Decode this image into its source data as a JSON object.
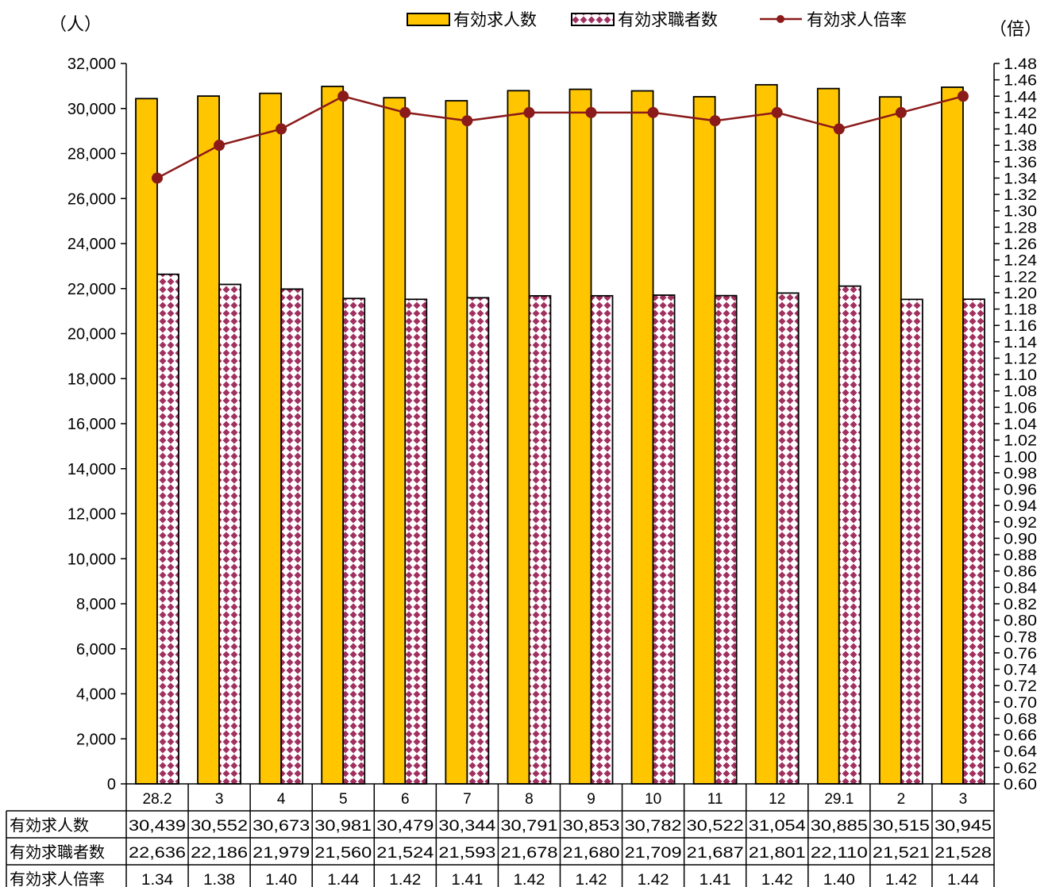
{
  "chart_data": {
    "type": "bar",
    "title": "",
    "y_left_unit": "（人）",
    "y_right_unit": "（倍）",
    "categories": [
      "28.2",
      "3",
      "4",
      "5",
      "6",
      "7",
      "8",
      "9",
      "10",
      "11",
      "12",
      "29.1",
      "2",
      "3"
    ],
    "series": [
      {
        "name": "有効求人数",
        "kind": "bar",
        "axis": "left",
        "color": "#FFC600",
        "values": [
          30439,
          30552,
          30673,
          30981,
          30479,
          30344,
          30791,
          30853,
          30782,
          30522,
          31054,
          30885,
          30515,
          30945
        ],
        "labels": [
          "30,439",
          "30,552",
          "30,673",
          "30,981",
          "30,479",
          "30,344",
          "30,791",
          "30,853",
          "30,782",
          "30,522",
          "31,054",
          "30,885",
          "30,515",
          "30,945"
        ]
      },
      {
        "name": "有効求職者数",
        "kind": "bar",
        "axis": "left",
        "color": "#A03060",
        "pattern": "diamond",
        "values": [
          22636,
          22186,
          21979,
          21560,
          21524,
          21593,
          21678,
          21680,
          21709,
          21687,
          21801,
          22110,
          21521,
          21528
        ],
        "labels": [
          "22,636",
          "22,186",
          "21,979",
          "21,560",
          "21,524",
          "21,593",
          "21,678",
          "21,680",
          "21,709",
          "21,687",
          "21,801",
          "22,110",
          "21,521",
          "21,528"
        ]
      },
      {
        "name": "有効求人倍率",
        "kind": "line",
        "axis": "right",
        "color": "#8B1A1A",
        "values": [
          1.34,
          1.38,
          1.4,
          1.44,
          1.42,
          1.41,
          1.42,
          1.42,
          1.42,
          1.41,
          1.42,
          1.4,
          1.42,
          1.44
        ],
        "labels": [
          "1.34",
          "1.38",
          "1.40",
          "1.44",
          "1.42",
          "1.41",
          "1.42",
          "1.42",
          "1.42",
          "1.41",
          "1.42",
          "1.40",
          "1.42",
          "1.44"
        ]
      }
    ],
    "y_left": {
      "min": 0,
      "max": 32000,
      "step": 2000
    },
    "y_right": {
      "min": 0.6,
      "max": 1.48,
      "step": 0.02
    },
    "grid": false,
    "legend": "top"
  }
}
